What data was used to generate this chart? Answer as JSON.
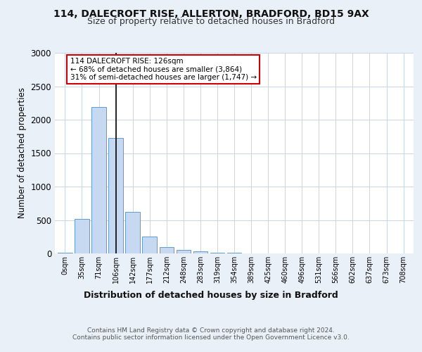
{
  "title1": "114, DALECROFT RISE, ALLERTON, BRADFORD, BD15 9AX",
  "title2": "Size of property relative to detached houses in Bradford",
  "xlabel": "Distribution of detached houses by size in Bradford",
  "ylabel": "Number of detached properties",
  "bin_labels": [
    "0sqm",
    "35sqm",
    "71sqm",
    "106sqm",
    "142sqm",
    "177sqm",
    "212sqm",
    "248sqm",
    "283sqm",
    "319sqm",
    "354sqm",
    "389sqm",
    "425sqm",
    "460sqm",
    "496sqm",
    "531sqm",
    "566sqm",
    "602sqm",
    "637sqm",
    "673sqm",
    "708sqm"
  ],
  "bar_values": [
    10,
    520,
    2190,
    1730,
    620,
    250,
    100,
    55,
    30,
    15,
    8,
    5,
    3,
    2,
    1,
    0,
    0,
    0,
    0,
    0,
    0
  ],
  "bar_color": "#c6d9f0",
  "bar_edge_color": "#5b9bd5",
  "property_bin_index": 3,
  "vline_color": "#000000",
  "annotation_text": "114 DALECROFT RISE: 126sqm\n← 68% of detached houses are smaller (3,864)\n31% of semi-detached houses are larger (1,747) →",
  "box_edge_color": "#cc0000",
  "box_face_color": "#ffffff",
  "ylim": [
    0,
    3000
  ],
  "yticks": [
    0,
    500,
    1000,
    1500,
    2000,
    2500,
    3000
  ],
  "footer_text": "Contains HM Land Registry data © Crown copyright and database right 2024.\nContains public sector information licensed under the Open Government Licence v3.0.",
  "bg_color": "#eaf0f8",
  "plot_bg_color": "#ffffff",
  "grid_color": "#c8d4e8"
}
